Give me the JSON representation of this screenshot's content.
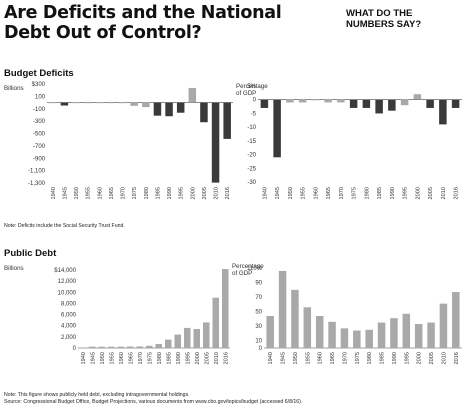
{
  "title": "Are Deficits and the National Debt Out of Control?",
  "subtitle": "WHAT DO THE NUMBERS SAY?",
  "sections": {
    "budget": "Budget Deficits",
    "debt": "Public Debt"
  },
  "notes": {
    "deficits": "Note: Deficits include the Social Security Trust Fund.",
    "debt": "Note: This figure shows publicly held debt, excluding intragovernmental holdings.",
    "source": "Source: Congressional Budget Office, Budget Projections, various documents from www.cbo.gov/topics/budget (accessed 6/8/16)."
  },
  "colors": {
    "dark_bar": "#3a3a3a",
    "light_bar": "#a9a9a9",
    "axis": "#444444"
  },
  "chart_data": [
    {
      "type": "bar",
      "id": "deficit-billions",
      "ylabel": "Billions",
      "categories": [
        "1940",
        "1945",
        "1950",
        "1955",
        "1960",
        "1965",
        "1970",
        "1975",
        "1980",
        "1985",
        "1990",
        "1995",
        "2000",
        "2005",
        "2010",
        "2016"
      ],
      "values": [
        -3,
        -48,
        -3,
        -3,
        -3,
        -2,
        -3,
        -53,
        -74,
        -212,
        -221,
        -164,
        236,
        -318,
        -1294,
        -587
      ],
      "highlight": [
        "1945",
        "2009"
      ],
      "ylim": [
        -1300,
        300
      ],
      "yticks": [
        300,
        100,
        -100,
        -300,
        -500,
        -700,
        -900,
        -1100,
        -1300
      ],
      "ytick_labels": [
        "$300",
        "100",
        "-100",
        "-300",
        "-500",
        "-700",
        "-900",
        "-1,100",
        "-1,300"
      ],
      "xlabels": [
        "1940",
        "1945",
        "1950",
        "1955",
        "1960",
        "1965",
        "1970",
        "1975",
        "1980",
        "1985",
        "1990",
        "1995",
        "2000",
        "2005",
        "2010",
        "2016"
      ]
    },
    {
      "type": "bar",
      "id": "deficit-gdp",
      "ylabel": "Percentage of GDP",
      "categories": [
        "1940",
        "1945",
        "1950",
        "1955",
        "1960",
        "1965",
        "1970",
        "1975",
        "1980",
        "1985",
        "1990",
        "1995",
        "2000",
        "2005",
        "2010",
        "2016"
      ],
      "values": [
        -3,
        -21,
        -1,
        -1,
        0,
        -1,
        -1,
        -3,
        -3,
        -5,
        -4,
        -2,
        2,
        -3,
        -9,
        -3
      ],
      "highlight": [
        "1943",
        "2009"
      ],
      "ylim": [
        -30,
        5
      ],
      "yticks": [
        5,
        0,
        -5,
        -10,
        -15,
        -20,
        -25,
        -30
      ],
      "ytick_labels": [
        "5%",
        "0",
        "-5",
        "-10",
        "-15",
        "-20",
        "-25",
        "-30"
      ],
      "xlabels": [
        "1940",
        "1945",
        "1950",
        "1955",
        "1960",
        "1965",
        "1970",
        "1975",
        "1980",
        "1985",
        "1990",
        "1995",
        "2000",
        "2005",
        "2010",
        "2016"
      ]
    },
    {
      "type": "bar",
      "id": "debt-billions",
      "ylabel": "Billions",
      "categories": [
        "1940",
        "1945",
        "1950",
        "1955",
        "1960",
        "1965",
        "1970",
        "1975",
        "1980",
        "1985",
        "1990",
        "1995",
        "2000",
        "2005",
        "2010",
        "2016"
      ],
      "values": [
        43,
        235,
        219,
        227,
        237,
        261,
        283,
        395,
        712,
        1507,
        2412,
        3604,
        3410,
        4592,
        9019,
        14168
      ],
      "ylim": [
        0,
        14000
      ],
      "yticks": [
        0,
        2000,
        4000,
        6000,
        8000,
        10000,
        12000,
        14000
      ],
      "ytick_labels": [
        "0",
        "2,000",
        "4,000",
        "6,000",
        "8,000",
        "10,000",
        "12,000",
        "$14,000"
      ],
      "xlabels": [
        "1940",
        "1945",
        "1950",
        "1955",
        "1960",
        "1965",
        "1970",
        "1975",
        "1980",
        "1985",
        "1990",
        "1995",
        "2000",
        "2005",
        "2010",
        "2016"
      ]
    },
    {
      "type": "bar",
      "id": "debt-gdp",
      "ylabel": "Percentage of GDP",
      "categories": [
        "1940",
        "1945",
        "1950",
        "1955",
        "1960",
        "1965",
        "1970",
        "1975",
        "1980",
        "1985",
        "1990",
        "1995",
        "2000",
        "2005",
        "2010",
        "2016"
      ],
      "values": [
        44,
        106,
        80,
        56,
        44,
        36,
        27,
        24,
        25,
        35,
        41,
        47,
        33,
        35,
        61,
        77
      ],
      "ylim": [
        0,
        110
      ],
      "yticks": [
        0,
        10,
        30,
        50,
        70,
        90,
        110
      ],
      "ytick_labels": [
        "0",
        "10",
        "30",
        "50",
        "70",
        "90",
        "110%"
      ],
      "xlabels": [
        "1940",
        "1945",
        "1950",
        "1955",
        "1960",
        "1965",
        "1970",
        "1975",
        "1980",
        "1985",
        "1990",
        "1995",
        "2000",
        "2005",
        "2010",
        "2016"
      ]
    }
  ]
}
